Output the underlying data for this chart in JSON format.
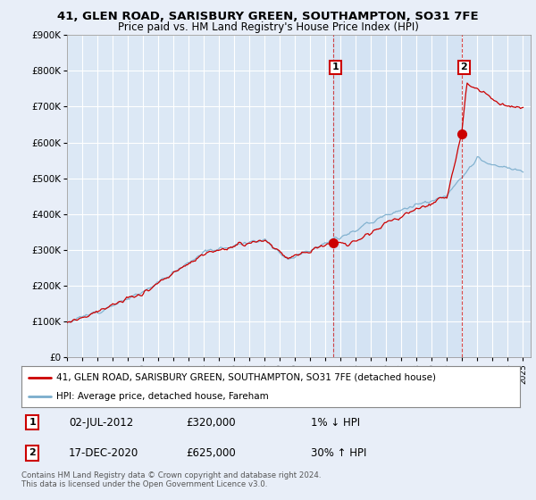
{
  "title_line1": "41, GLEN ROAD, SARISBURY GREEN, SOUTHAMPTON, SO31 7FE",
  "title_line2": "Price paid vs. HM Land Registry's House Price Index (HPI)",
  "background_color": "#e8eef8",
  "plot_bg_color": "#dce8f5",
  "grid_color": "#b0c4d8",
  "legend_entry1": "41, GLEN ROAD, SARISBURY GREEN, SOUTHAMPTON, SO31 7FE (detached house)",
  "legend_entry2": "HPI: Average price, detached house, Fareham",
  "transaction1_date": "02-JUL-2012",
  "transaction1_price": "£320,000",
  "transaction1_hpi": "1% ↓ HPI",
  "transaction1_year": 2012.5,
  "transaction1_value": 320000,
  "transaction2_date": "17-DEC-2020",
  "transaction2_price": "£625,000",
  "transaction2_hpi": "30% ↑ HPI",
  "transaction2_year": 2020.96,
  "transaction2_value": 625000,
  "footer": "Contains HM Land Registry data © Crown copyright and database right 2024.\nThis data is licensed under the Open Government Licence v3.0.",
  "ylim": [
    0,
    900000
  ],
  "yticks": [
    0,
    100000,
    200000,
    300000,
    400000,
    500000,
    600000,
    700000,
    800000,
    900000
  ],
  "red_color": "#cc0000",
  "blue_color": "#7aadcc",
  "vline_color": "#cc0000"
}
